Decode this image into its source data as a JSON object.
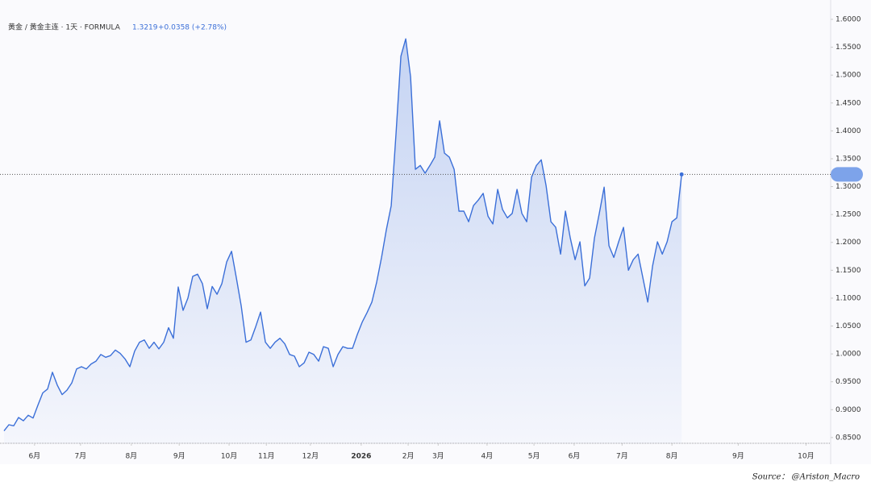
{
  "chart_data": {
    "type": "area",
    "legend": {
      "symbol": "黄金 / 黄金主连 · 1天 · FORMULA",
      "change": "+0.0358 (+2.78%)"
    },
    "source": "Source： @Ariston_Macro",
    "color": "#3b6fd8",
    "values": [
      0.862,
      0.873,
      0.871,
      0.886,
      0.88,
      0.89,
      0.885,
      0.908,
      0.93,
      0.937,
      0.967,
      0.944,
      0.927,
      0.935,
      0.948,
      0.973,
      0.977,
      0.973,
      0.982,
      0.987,
      0.999,
      0.994,
      0.997,
      1.007,
      1.001,
      0.991,
      0.977,
      1.005,
      1.021,
      1.025,
      1.01,
      1.021,
      1.009,
      1.021,
      1.047,
      1.028,
      1.12,
      1.078,
      1.1,
      1.139,
      1.143,
      1.126,
      1.081,
      1.121,
      1.107,
      1.126,
      1.165,
      1.184,
      1.136,
      1.086,
      1.021,
      1.025,
      1.049,
      1.075,
      1.021,
      1.01,
      1.021,
      1.028,
      1.018,
      0.999,
      0.996,
      0.977,
      0.984,
      1.003,
      0.999,
      0.987,
      1.013,
      1.01,
      0.977,
      0.999,
      1.013,
      1.01,
      1.01,
      1.035,
      1.057,
      1.074,
      1.093,
      1.129,
      1.173,
      1.223,
      1.266,
      1.396,
      1.534,
      1.565,
      1.497,
      1.331,
      1.338,
      1.324,
      1.338,
      1.353,
      1.418,
      1.36,
      1.353,
      1.331,
      1.256,
      1.256,
      1.237,
      1.266,
      1.276,
      1.288,
      1.247,
      1.233,
      1.295,
      1.259,
      1.244,
      1.252,
      1.295,
      1.252,
      1.237,
      1.317,
      1.338,
      1.348,
      1.302,
      1.237,
      1.227,
      1.179,
      1.256,
      1.208,
      1.169,
      1.201,
      1.122,
      1.136,
      1.208,
      1.252,
      1.299,
      1.194,
      1.173,
      1.201,
      1.227,
      1.15,
      1.169,
      1.179,
      1.136,
      1.093,
      1.158,
      1.201,
      1.179,
      1.201,
      1.237,
      1.244,
      1.3219
    ],
    "xlim": [
      0,
      170.8
    ],
    "xticks": [
      {
        "value": 6.3,
        "label": "6月"
      },
      {
        "value": 15.8,
        "label": "7月"
      },
      {
        "value": 26.3,
        "label": "8月"
      },
      {
        "value": 36.2,
        "label": "9月"
      },
      {
        "value": 46.5,
        "label": "10月"
      },
      {
        "value": 54.2,
        "label": "11月"
      },
      {
        "value": 63.3,
        "label": "12月"
      },
      {
        "value": 73.8,
        "label": "2026"
      },
      {
        "value": 83.5,
        "label": "2月"
      },
      {
        "value": 89.7,
        "label": "3月"
      },
      {
        "value": 99.8,
        "label": "4月"
      },
      {
        "value": 109.5,
        "label": "5月"
      },
      {
        "value": 117.8,
        "label": "6月"
      },
      {
        "value": 127.7,
        "label": "7月"
      },
      {
        "value": 138,
        "label": "8月"
      },
      {
        "value": 151.7,
        "label": "9月"
      },
      {
        "value": 165.7,
        "label": "10月"
      }
    ],
    "ylim": [
      0.8397,
      1.6347
    ],
    "yticks": [
      {
        "value": 0.85,
        "label": "0.8500"
      },
      {
        "value": 0.9,
        "label": "0.9000"
      },
      {
        "value": 0.95,
        "label": "0.9500"
      },
      {
        "value": 1.0,
        "label": "1.0000"
      },
      {
        "value": 1.05,
        "label": "1.0500"
      },
      {
        "value": 1.1,
        "label": "1.1000"
      },
      {
        "value": 1.15,
        "label": "1.1500"
      },
      {
        "value": 1.2,
        "label": "1.2000"
      },
      {
        "value": 1.25,
        "label": "1.2500"
      },
      {
        "value": 1.3,
        "label": "1.3000"
      },
      {
        "value": 1.35,
        "label": "1.3500"
      },
      {
        "value": 1.4,
        "label": "1.4000"
      },
      {
        "value": 1.45,
        "label": "1.4500"
      },
      {
        "value": 1.5,
        "label": "1.5000"
      },
      {
        "value": 1.55,
        "label": "1.5500"
      },
      {
        "value": 1.6,
        "label": "1.6000"
      }
    ]
  }
}
